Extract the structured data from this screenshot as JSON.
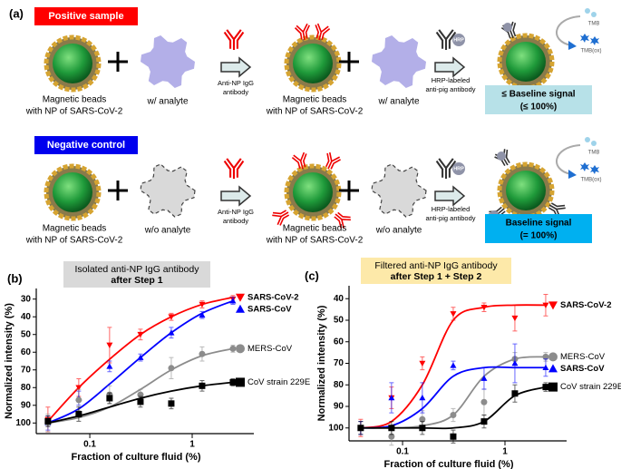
{
  "panel_a": {
    "label": "(a)",
    "rows": [
      {
        "tag": "Positive sample",
        "tag_color": "#ff0000",
        "bead_label": [
          "Magnetic beads",
          "with NP of SARS-CoV-2"
        ],
        "analyte": "w/ analyte",
        "reagent1": [
          "Anti-NP IgG",
          "antibody"
        ],
        "bead2_label": [
          "Magnetic beads",
          "with NP of SARS-CoV-2"
        ],
        "analyte2": "w/ analyte",
        "reagent2": [
          "HRP-labeled",
          "anti-pig antibody"
        ],
        "hrp": "HRP",
        "tmb": "TMB",
        "tmb_ox": "TMB(ox)",
        "signal": [
          "≤ Baseline signal",
          "(≤ 100%)"
        ],
        "signal_color": "#b7e1e8"
      },
      {
        "tag": "Negative control",
        "tag_color": "#0000ee",
        "bead_label": [
          "Magnetic beads",
          "with NP of SARS-CoV-2"
        ],
        "analyte": "w/o analyte",
        "reagent1": [
          "Anti-NP IgG",
          "antibody"
        ],
        "bead2_label": [
          "Magnetic beads",
          "with NP of SARS-CoV-2"
        ],
        "analyte2": "w/o analyte",
        "reagent2": [
          "HRP-labeled",
          "anti-pig antibody"
        ],
        "hrp": "HRP",
        "tmb": "TMB",
        "tmb_ox": "TMB(ox)",
        "signal": [
          "Baseline signal",
          "(= 100%)"
        ],
        "signal_color": "#00b0f0"
      }
    ]
  },
  "chart_data": [
    {
      "type": "scatter",
      "panel_label": "(b)",
      "title": "Isolated anti-NP IgG antibody",
      "subtitle": "after Step 1",
      "title_color": "#d9d9d9",
      "x_label": "Fraction of culture fluid (%)",
      "y_label": "Normalized intensity (%)",
      "xscale": "log",
      "xlim": [
        0.03,
        4
      ],
      "xticks": [
        0.1,
        1
      ],
      "ylim": [
        24,
        106
      ],
      "y_inverted": true,
      "yticks": [
        30,
        40,
        50,
        60,
        70,
        80,
        90,
        100
      ],
      "x": [
        0.039,
        0.078,
        0.156,
        0.3125,
        0.625,
        1.25,
        2.5
      ],
      "series": [
        {
          "name": "SARS-CoV-2",
          "color": "#ff0000",
          "marker": "triangle-down",
          "label_bold": true,
          "values": [
            98,
            80,
            56,
            50,
            40,
            33,
            30
          ],
          "errors": [
            7,
            5,
            10,
            3,
            2,
            2,
            2
          ],
          "fit": [
            99,
            80,
            64,
            50,
            40,
            33,
            29
          ]
        },
        {
          "name": "SARS-CoV",
          "color": "#0000ff",
          "marker": "triangle-up",
          "label_bold": true,
          "values": [
            100,
            86,
            68,
            63,
            49,
            39,
            31
          ],
          "errors": [
            4,
            4,
            3,
            2,
            3,
            2,
            2
          ],
          "fit": [
            100,
            92,
            78,
            63,
            49,
            38,
            31
          ]
        },
        {
          "name": "MERS-CoV",
          "color": "#8c8c8c",
          "marker": "circle",
          "label_bold": false,
          "values": [
            100,
            87,
            84,
            84,
            69,
            61,
            58
          ],
          "errors": [
            5,
            6,
            5,
            3,
            6,
            4,
            2
          ],
          "fit": [
            100,
            97,
            91,
            81,
            70,
            62,
            58
          ]
        },
        {
          "name": "CoV strain 229E",
          "color": "#000000",
          "marker": "square",
          "label_bold": false,
          "values": [
            99,
            95,
            86,
            88,
            89,
            79,
            77
          ],
          "errors": [
            3,
            4,
            3,
            3,
            3,
            3,
            2
          ],
          "fit": [
            100,
            96,
            91,
            86,
            82,
            79,
            77
          ]
        }
      ]
    },
    {
      "type": "scatter",
      "panel_label": "(c)",
      "title": "Filtered anti-NP IgG antibody",
      "subtitle": "after Step 1 + Step 2",
      "title_color": "#fde9a9",
      "x_label": "Fraction of culture fluid (%)",
      "y_label": "Normalized intensity (%)",
      "xscale": "log",
      "xlim": [
        0.03,
        4
      ],
      "xticks": [
        0.1,
        1
      ],
      "ylim": [
        34,
        106
      ],
      "y_inverted": true,
      "yticks": [
        40,
        50,
        60,
        70,
        80,
        90,
        100
      ],
      "x": [
        0.039,
        0.078,
        0.156,
        0.3125,
        0.625,
        1.25,
        2.5
      ],
      "series": [
        {
          "name": "SARS-CoV-2",
          "color": "#ff0000",
          "marker": "triangle-down",
          "label_bold": true,
          "values": [
            100,
            86,
            70,
            47,
            44,
            49,
            43
          ],
          "errors": [
            4,
            5,
            3,
            3,
            2,
            6,
            5
          ],
          "fit": [
            100,
            97,
            80,
            50,
            44,
            43,
            43
          ]
        },
        {
          "name": "MERS-CoV",
          "color": "#8c8c8c",
          "marker": "circle",
          "label_bold": false,
          "values": [
            100,
            104,
            96,
            94,
            88,
            68,
            67
          ],
          "errors": [
            3,
            4,
            4,
            3,
            6,
            3,
            2
          ],
          "fit": [
            100,
            100,
            99,
            94,
            76,
            68,
            67
          ]
        },
        {
          "name": "SARS-CoV",
          "color": "#0000ff",
          "marker": "triangle-up",
          "label_bold": true,
          "values": [
            100,
            86,
            86,
            71,
            77,
            70,
            72
          ],
          "errors": [
            3,
            7,
            7,
            2,
            5,
            9,
            4
          ],
          "fit": [
            100,
            99,
            91,
            76,
            72,
            72,
            72
          ]
        },
        {
          "name": "CoV strain 229E",
          "color": "#000000",
          "marker": "square",
          "label_bold": false,
          "values": [
            100,
            100,
            100,
            104,
            97,
            84,
            81
          ],
          "errors": [
            3,
            3,
            3,
            3,
            3,
            4,
            2
          ],
          "fit": [
            100,
            100,
            100,
            100,
            97,
            85,
            81
          ]
        }
      ]
    }
  ]
}
